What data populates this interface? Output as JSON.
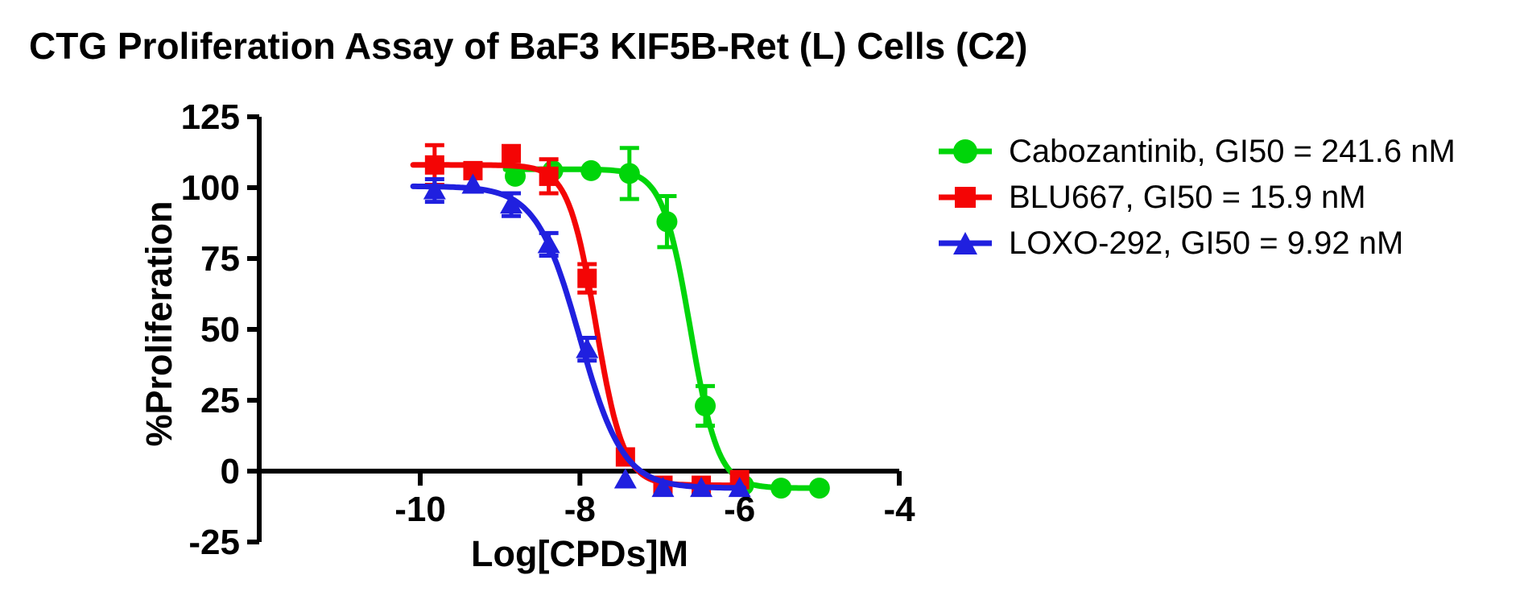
{
  "chart_data": {
    "type": "line",
    "title": "CTG Proliferation Assay of BaF3 KIF5B-Ret (L) Cells (C2)",
    "xlabel": "Log[CPDs]M",
    "ylabel": "%Proliferation",
    "x_ticks": [
      -10,
      -8,
      -6,
      -4
    ],
    "y_ticks": [
      125,
      100,
      75,
      50,
      25,
      0,
      -25
    ],
    "xlim": [
      -12,
      -4
    ],
    "ylim": [
      -25,
      125
    ],
    "grid": false,
    "legend_position": "right",
    "series": [
      {
        "name": "Cabozantinib",
        "gi50_nM": 241.6,
        "legend_label": "Cabozantinib, GI50 = 241.6 nM",
        "color": "#00d50a",
        "marker": "circle",
        "x": [
          -8.81,
          -8.34,
          -7.86,
          -7.38,
          -6.91,
          -6.43,
          -5.95,
          -5.48,
          -5.0
        ],
        "y": [
          104,
          106,
          106,
          105,
          88,
          23,
          -5,
          -6,
          -6
        ],
        "err": [
          0,
          0,
          0,
          9,
          9,
          7,
          0,
          0,
          0
        ],
        "fit": {
          "top": 106.5,
          "bottom": -6,
          "log_gi50": -6.617,
          "hill": 2.5,
          "curve_range": [
            -8.93,
            -4.95
          ]
        }
      },
      {
        "name": "BLU667",
        "gi50_nM": 15.9,
        "legend_label": "BLU667, GI50 = 15.9 nM",
        "color": "#f40505",
        "marker": "square",
        "x": [
          -9.82,
          -9.34,
          -8.86,
          -8.39,
          -7.91,
          -7.43,
          -6.96,
          -6.48,
          -6.0
        ],
        "y": [
          108,
          106,
          112,
          104,
          68,
          5,
          -5,
          -5,
          -3
        ],
        "err": [
          7,
          0,
          0,
          6,
          5,
          0,
          0,
          0,
          0
        ],
        "fit": {
          "top": 108,
          "bottom": -5,
          "log_gi50": -7.799,
          "hill": 2.5,
          "curve_range": [
            -10.09,
            -5.95
          ]
        }
      },
      {
        "name": "LOXO-292",
        "gi50_nM": 9.92,
        "legend_label": "LOXO-292, GI50 = 9.92 nM",
        "color": "#2020df",
        "marker": "triangle",
        "x": [
          -9.82,
          -9.34,
          -8.86,
          -8.39,
          -7.91,
          -7.43,
          -6.96,
          -6.48,
          -6.0
        ],
        "y": [
          99,
          101,
          94,
          80,
          43,
          -3,
          -6,
          -6,
          -6
        ],
        "err": [
          4,
          0,
          4,
          4,
          4,
          0,
          0,
          0,
          0
        ],
        "fit": {
          "top": 100.5,
          "bottom": -6,
          "log_gi50": -8.003,
          "hill": 1.6,
          "curve_range": [
            -10.09,
            -5.95
          ]
        }
      }
    ]
  }
}
